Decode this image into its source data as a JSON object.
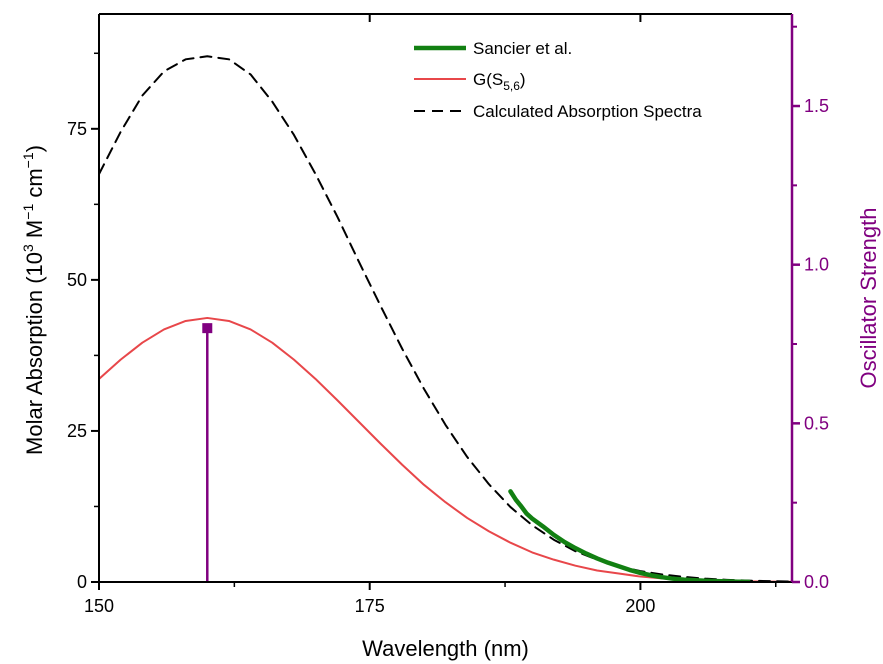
{
  "chart_data": {
    "type": "line",
    "xlabel": "Wavelength (nm)",
    "ylabel": "Molar Absorption (10³ M⁻¹ cm⁻¹)",
    "ylabel_parts": {
      "text1": "Molar Absorption (10",
      "sup1": "3",
      "text2": " M",
      "sup2": "−1",
      "text3": " cm",
      "sup3": "−1",
      "text4": ")"
    },
    "y2label": "Oscillator Strength",
    "xlim": [
      150,
      214
    ],
    "ylim": [
      0,
      94
    ],
    "y2lim": [
      0,
      1.79
    ],
    "x_ticks": [
      150,
      175,
      200
    ],
    "y_ticks": [
      0,
      25,
      50,
      75
    ],
    "y2_ticks": [
      "0.0",
      "0.5",
      "1.0",
      "1.5"
    ],
    "y2_tick_values": [
      0,
      0.5,
      1.0,
      1.5
    ],
    "grid": false,
    "legend_position": "top-right",
    "colors": {
      "sancier": "#128012",
      "gaussian": "#e8474a",
      "calculated": "#000000",
      "oscillator": "#800080"
    },
    "series": [
      {
        "name": "Sancier et al.",
        "style": "solid-thick",
        "x": [
          188,
          188.5,
          189,
          189.5,
          190,
          191,
          192,
          193,
          194,
          195,
          196,
          197,
          198,
          199,
          200,
          201,
          202,
          203,
          204,
          205,
          206,
          207,
          208,
          209,
          210
        ],
        "y": [
          15,
          13.6,
          12.5,
          11.3,
          10.5,
          9.2,
          7.8,
          6.6,
          5.6,
          4.7,
          3.9,
          3.2,
          2.6,
          2.0,
          1.5,
          1.1,
          0.8,
          0.55,
          0.4,
          0.3,
          0.2,
          0.15,
          0.1,
          0.05,
          0.02
        ]
      },
      {
        "name": "G(S",
        "name_sub": "5,6",
        "name_suffix": ")",
        "style": "solid",
        "x": [
          150,
          152,
          154,
          156,
          158,
          160,
          162,
          164,
          166,
          168,
          170,
          172,
          174,
          176,
          178,
          180,
          182,
          184,
          186,
          188,
          190,
          192,
          194,
          196,
          198,
          200,
          202,
          204,
          206,
          208,
          210,
          212,
          214
        ],
        "y": [
          33.6,
          36.8,
          39.6,
          41.8,
          43.2,
          43.7,
          43.2,
          41.8,
          39.6,
          36.8,
          33.6,
          30.1,
          26.5,
          22.9,
          19.4,
          16.1,
          13.2,
          10.6,
          8.4,
          6.5,
          4.9,
          3.7,
          2.7,
          1.9,
          1.4,
          0.9,
          0.6,
          0.4,
          0.27,
          0.17,
          0.11,
          0.07,
          0.04
        ]
      },
      {
        "name": "Calculated Absorption Spectra",
        "style": "dashed",
        "x": [
          150,
          152,
          154,
          156,
          158,
          160,
          162,
          164,
          166,
          168,
          170,
          172,
          174,
          176,
          178,
          180,
          182,
          184,
          186,
          188,
          190,
          192,
          194,
          196,
          198,
          200,
          202,
          204,
          206,
          208,
          210,
          212,
          214
        ],
        "y": [
          67.5,
          74.5,
          80.5,
          84.5,
          86.5,
          87,
          86.5,
          84,
          79.5,
          74,
          67.5,
          60.5,
          53,
          45.7,
          38.6,
          32,
          26,
          20.7,
          16.2,
          12.4,
          9.4,
          7.0,
          5.1,
          3.7,
          2.6,
          1.8,
          1.25,
          0.85,
          0.55,
          0.35,
          0.22,
          0.14,
          0.08
        ]
      }
    ],
    "oscillator_strength": {
      "x": 160,
      "f": 0.8
    }
  }
}
